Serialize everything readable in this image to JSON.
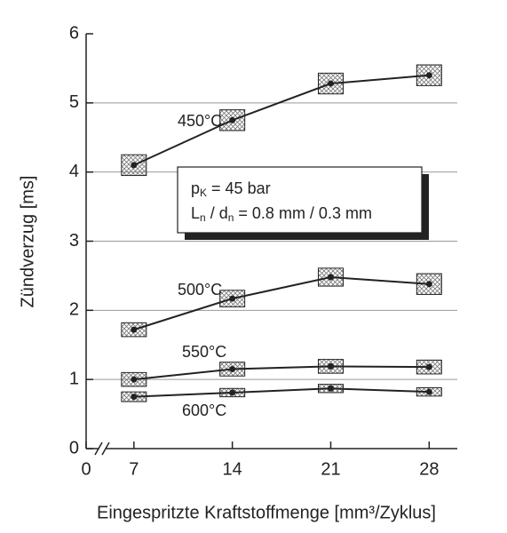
{
  "chart_data": {
    "type": "line",
    "x_label": "Eingespritzte Kraftstoffmenge  [mm³/Zyklus]",
    "y_label": "Zündverzug  [ms]",
    "x": [
      7,
      14,
      21,
      28
    ],
    "xlim": [
      3.6,
      30
    ],
    "xticks": [
      0,
      7,
      14,
      21,
      28
    ],
    "axis_break": true,
    "ylim": [
      0,
      6
    ],
    "yticks": [
      0,
      1,
      2,
      3,
      4,
      5,
      6
    ],
    "grid": true,
    "series": [
      {
        "name": "450°C",
        "color": "#222",
        "values": [
          4.1,
          4.75,
          5.28,
          5.4
        ],
        "errors": [
          0.15,
          0.15,
          0.15,
          0.15
        ]
      },
      {
        "name": "500°C",
        "color": "#222",
        "values": [
          1.72,
          2.17,
          2.48,
          2.38
        ],
        "errors": [
          0.1,
          0.12,
          0.13,
          0.15
        ]
      },
      {
        "name": "550°C",
        "color": "#222",
        "values": [
          1.0,
          1.15,
          1.19,
          1.18
        ],
        "errors": [
          0.1,
          0.1,
          0.1,
          0.1
        ]
      },
      {
        "name": "600°C",
        "color": "#222",
        "values": [
          0.75,
          0.81,
          0.87,
          0.82
        ],
        "errors": [
          0.07,
          0.06,
          0.06,
          0.06
        ]
      }
    ],
    "annotation": [
      [
        {
          "text": "p"
        },
        {
          "text": "K",
          "sub": true
        },
        {
          "text": " = 45 bar"
        }
      ],
      [
        {
          "text": "L"
        },
        {
          "text": "n",
          "sub": true
        },
        {
          "text": " / d"
        },
        {
          "text": "n",
          "sub": true
        },
        {
          "text": " = 0.8 mm / 0.3 mm"
        }
      ]
    ]
  }
}
